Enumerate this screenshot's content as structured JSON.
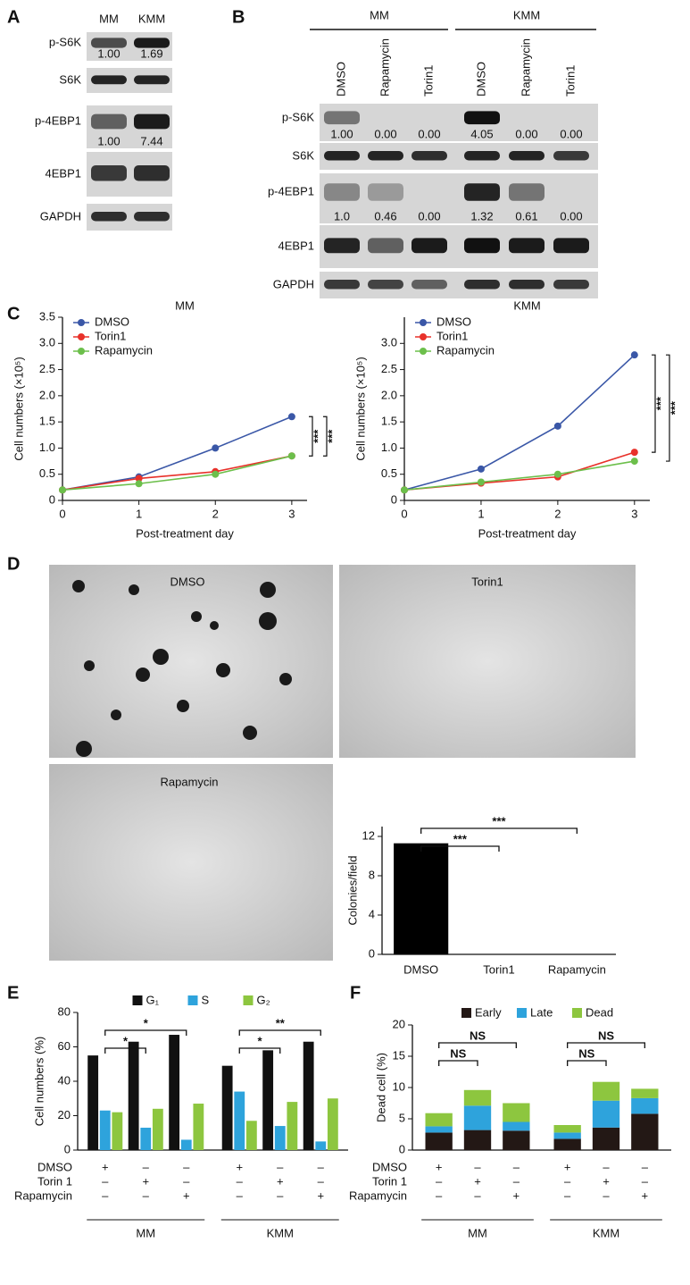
{
  "panel_labels": [
    "A",
    "B",
    "C",
    "D",
    "E",
    "F"
  ],
  "blot_a": {
    "columns": [
      "MM",
      "KMM"
    ],
    "rows": [
      {
        "label": "p-S6K",
        "quant": [
          "1.00",
          "1.69"
        ]
      },
      {
        "label": "S6K"
      },
      {
        "label": "p-4EBP1",
        "quant": [
          "1.00",
          "7.44"
        ]
      },
      {
        "label": "4EBP1"
      },
      {
        "label": "GAPDH"
      }
    ]
  },
  "blot_b": {
    "groups": [
      "MM",
      "KMM"
    ],
    "lanes": [
      "DMSO",
      "Rapamycin",
      "Torin1",
      "DMSO",
      "Rapamycin",
      "Torin1"
    ],
    "rows": [
      {
        "label": "p-S6K",
        "quant": [
          "1.00",
          "0.00",
          "0.00",
          "4.05",
          "0.00",
          "0.00"
        ]
      },
      {
        "label": "S6K"
      },
      {
        "label": "p-4EBP1",
        "quant": [
          "1.0",
          "0.46",
          "0.00",
          "1.32",
          "0.61",
          "0.00"
        ]
      },
      {
        "label": "4EBP1"
      },
      {
        "label": "GAPDH"
      }
    ]
  },
  "microscopy": {
    "labels": [
      "DMSO",
      "Torin1",
      "Rapamycin"
    ]
  },
  "chart_data": [
    {
      "type": "line",
      "title": "MM",
      "x_label": "Post-treatment day",
      "y_label": "Cell numbers (×10⁵)",
      "x": [
        0,
        1,
        2,
        3
      ],
      "xlim": [
        0,
        3.2
      ],
      "xticks": [
        0,
        1,
        2,
        3
      ],
      "ylim": [
        0,
        3.5
      ],
      "yticks": [
        0,
        0.5,
        {
          "value": 1,
          "label": "1.0"
        },
        1.5,
        {
          "value": 2,
          "label": "2.0"
        },
        2.5,
        {
          "value": 3,
          "label": "3.0"
        },
        3.5
      ],
      "series": [
        {
          "name": "DMSO",
          "color": "#3a57a7",
          "values": [
            0.2,
            0.45,
            1.0,
            1.6
          ]
        },
        {
          "name": "Torin1",
          "color": "#e8312a",
          "values": [
            0.2,
            0.42,
            0.55,
            0.85
          ]
        },
        {
          "name": "Rapamycin",
          "color": "#6cbf4b",
          "values": [
            0.2,
            0.32,
            0.5,
            0.85
          ]
        }
      ],
      "annotations": [
        "***",
        "***"
      ]
    },
    {
      "type": "line",
      "title": "KMM",
      "x_label": "Post-treatment day",
      "y_label": "Cell numbers (×10⁵)",
      "x": [
        0,
        1,
        2,
        3
      ],
      "xlim": [
        0,
        3.2
      ],
      "xticks": [
        0,
        1,
        2,
        3
      ],
      "ylim": [
        0,
        3.5
      ],
      "yticks": [
        0,
        0.5,
        {
          "value": 1,
          "label": "1.0"
        },
        1.5,
        {
          "value": 2,
          "label": "2.0"
        },
        2.5,
        {
          "value": 3,
          "label": "3.0"
        }
      ],
      "series": [
        {
          "name": "DMSO",
          "color": "#3a57a7",
          "values": [
            0.2,
            0.6,
            1.42,
            2.78
          ]
        },
        {
          "name": "Torin1",
          "color": "#e8312a",
          "values": [
            0.2,
            0.33,
            0.45,
            0.92
          ]
        },
        {
          "name": "Rapamycin",
          "color": "#6cbf4b",
          "values": [
            0.2,
            0.35,
            0.5,
            0.75
          ]
        }
      ],
      "annotations": [
        "***",
        "***"
      ]
    },
    {
      "type": "bar",
      "y_label": "Colonies/field",
      "categories": [
        "DMSO",
        "Torin1",
        "Rapamycin"
      ],
      "values": [
        11.3,
        0,
        0
      ],
      "color": "#000000",
      "ylim": [
        0,
        13
      ],
      "yticks": [
        0,
        4,
        8,
        12
      ],
      "annotations": [
        "***",
        "***"
      ]
    },
    {
      "type": "grouped_bar",
      "y_label": "Cell numbers (%)",
      "categories": [
        null,
        null,
        null,
        null,
        null,
        null
      ],
      "ylim": [
        0,
        80
      ],
      "yticks": [
        0,
        20,
        40,
        60,
        80
      ],
      "series": [
        {
          "name": "G₁",
          "color": "#111111",
          "values": [
            55,
            63,
            67,
            49,
            58,
            63
          ]
        },
        {
          "name": "S",
          "color": "#2ea3dc",
          "values": [
            23,
            13,
            6,
            34,
            14,
            5
          ]
        },
        {
          "name": "G₂",
          "color": "#8dc63f",
          "values": [
            22,
            24,
            27,
            17,
            28,
            30
          ]
        }
      ],
      "treatments": [
        {
          "label": "DMSO",
          "marks": [
            "+",
            "–",
            "–",
            "+",
            "–",
            "–"
          ]
        },
        {
          "label": "Torin 1",
          "marks": [
            "–",
            "+",
            "–",
            "–",
            "+",
            "–"
          ]
        },
        {
          "label": "Rapamycin",
          "marks": [
            "–",
            "–",
            "+",
            "–",
            "–",
            "+"
          ]
        }
      ],
      "groups": [
        "MM",
        "KMM"
      ],
      "annotations": [
        "*",
        "*",
        "*",
        "**"
      ]
    },
    {
      "type": "stacked_bar",
      "y_label": "Dead cell (%)",
      "categories": [
        null,
        null,
        null,
        null,
        null,
        null
      ],
      "ylim": [
        0,
        20
      ],
      "yticks": [
        0,
        5,
        10,
        15,
        20
      ],
      "series": [
        {
          "name": "Early",
          "color": "#231815",
          "values": [
            2.8,
            3.2,
            3.1,
            1.8,
            3.6,
            5.8
          ]
        },
        {
          "name": "Late",
          "color": "#2ea3dc",
          "values": [
            1.0,
            3.9,
            1.4,
            1.0,
            4.3,
            2.5
          ]
        },
        {
          "name": "Dead",
          "color": "#8dc63f",
          "values": [
            2.1,
            2.5,
            3.0,
            1.2,
            3.0,
            1.5
          ]
        }
      ],
      "treatments": [
        {
          "label": "DMSO",
          "marks": [
            "+",
            "–",
            "–",
            "+",
            "–",
            "–"
          ]
        },
        {
          "label": "Torin 1",
          "marks": [
            "–",
            "+",
            "–",
            "–",
            "+",
            "–"
          ]
        },
        {
          "label": "Rapamycin",
          "marks": [
            "–",
            "–",
            "+",
            "–",
            "–",
            "+"
          ]
        }
      ],
      "groups": [
        "MM",
        "KMM"
      ],
      "annotations": [
        "NS",
        "NS",
        "NS",
        "NS"
      ]
    }
  ]
}
